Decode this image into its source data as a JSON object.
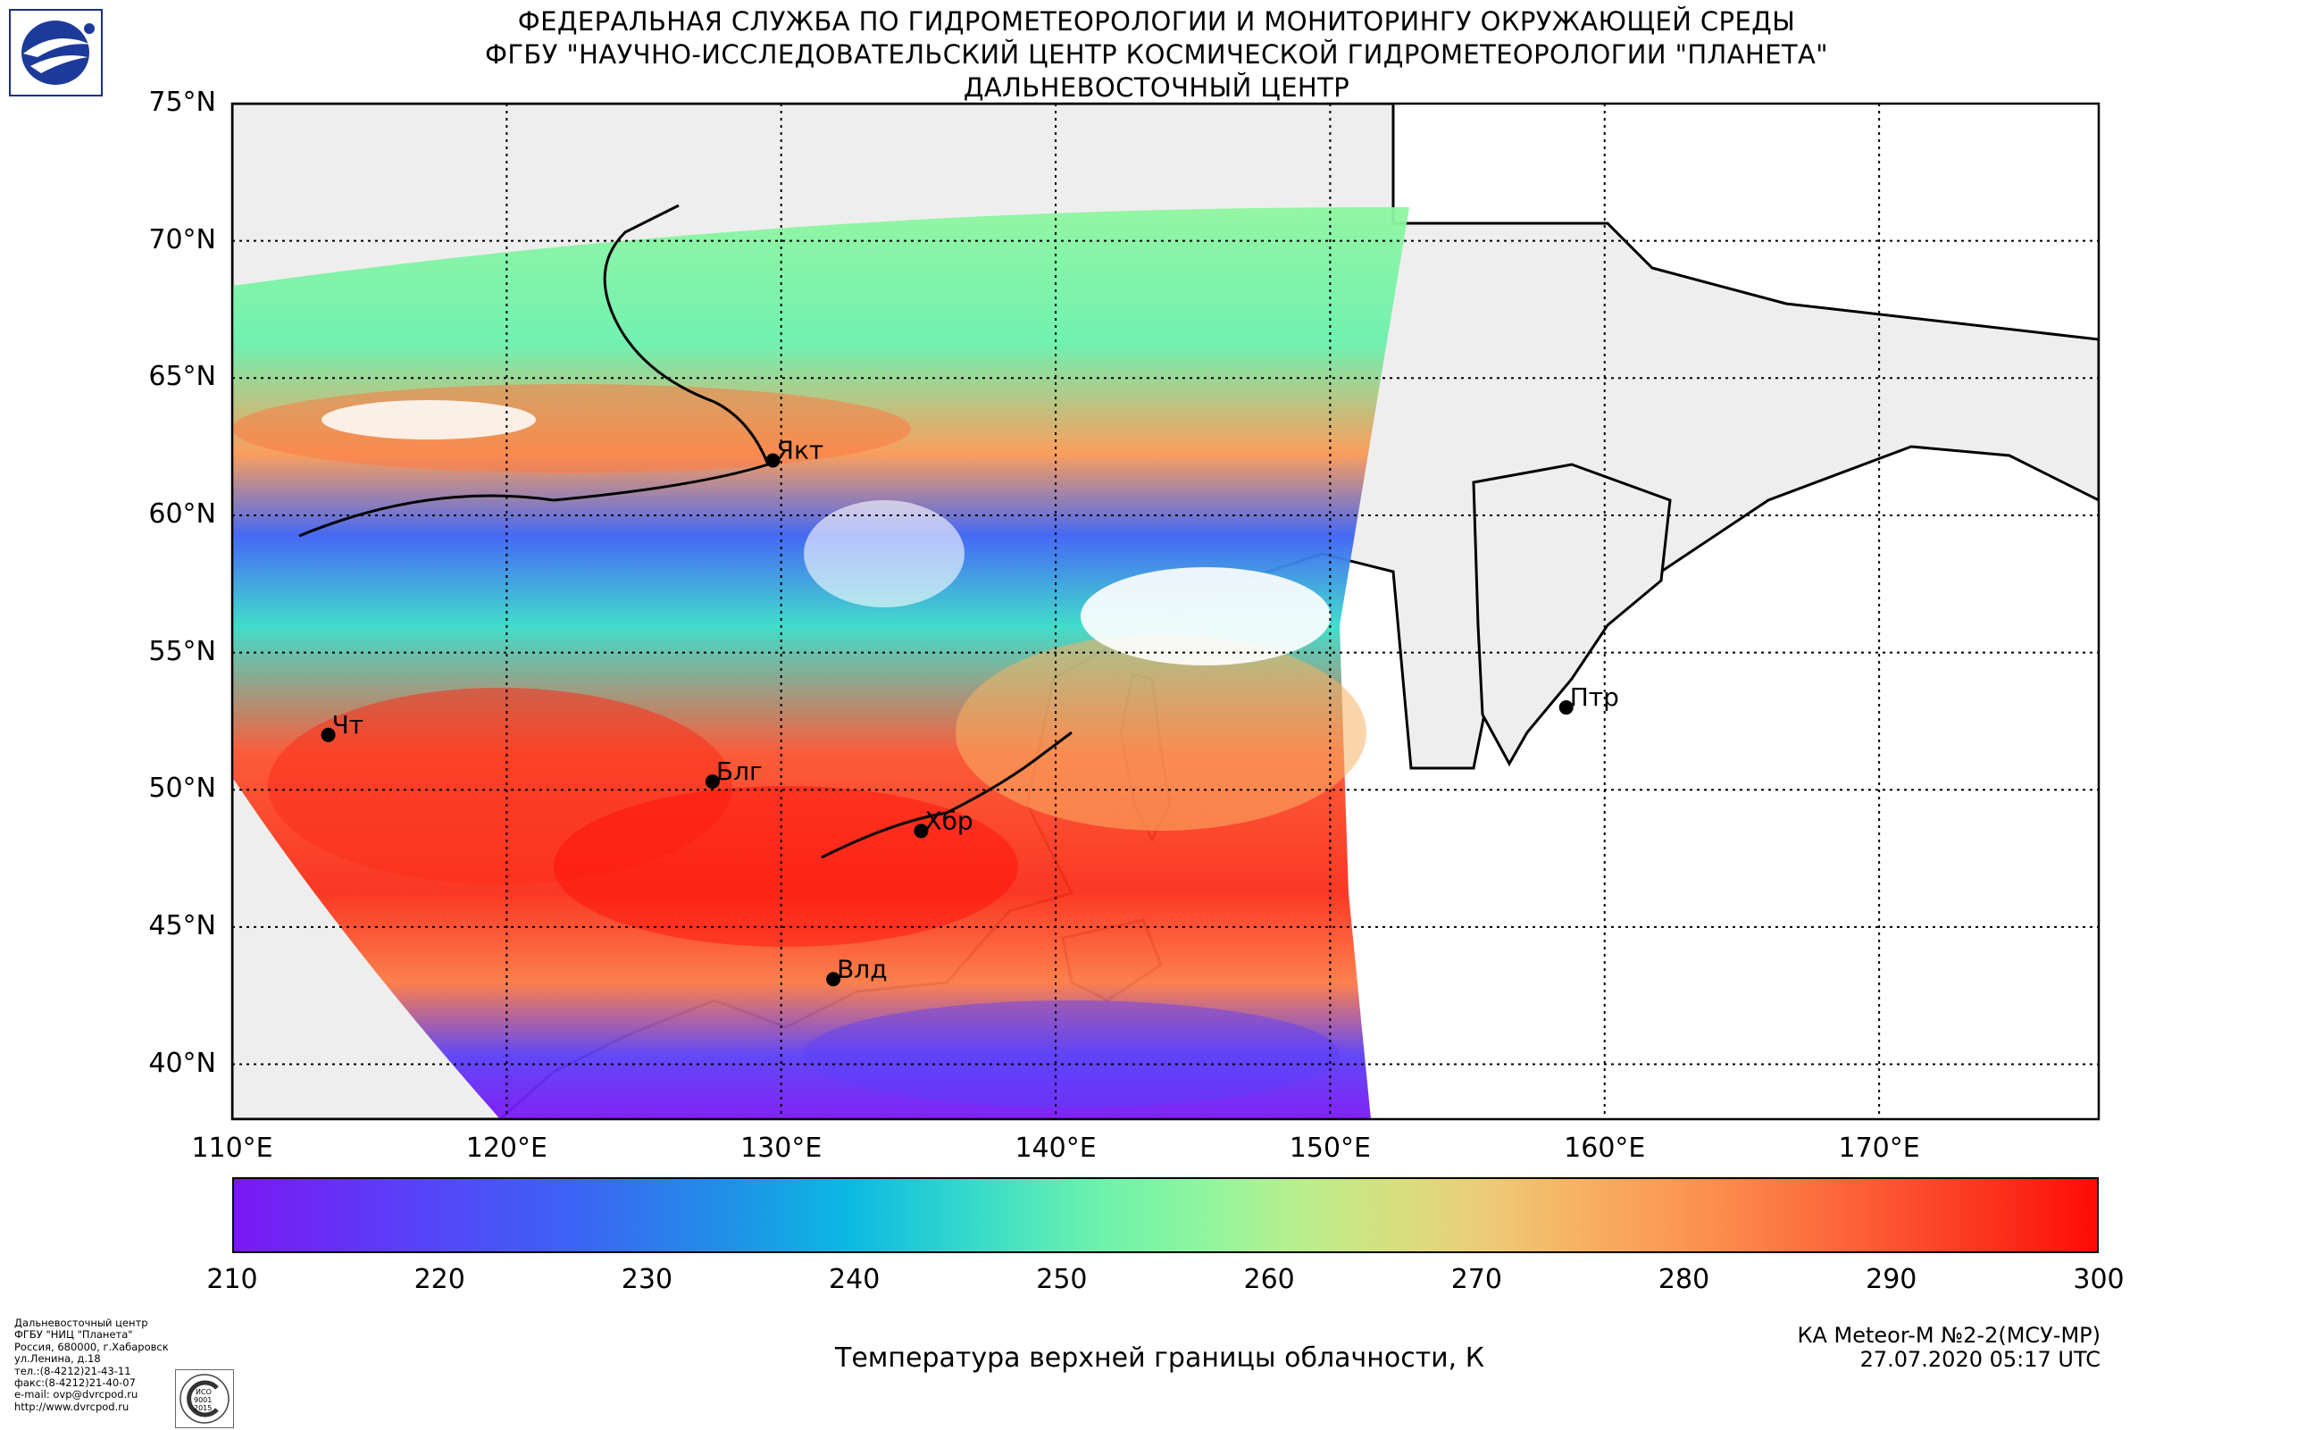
{
  "header": {
    "line1": "ФЕДЕРАЛЬНАЯ СЛУЖБА ПО ГИДРОМЕТЕОРОЛОГИИ И МОНИТОРИНГУ ОКРУЖАЮЩЕЙ СРЕДЫ",
    "line2": "ФГБУ \"НАУЧНО-ИССЛЕДОВАТЕЛЬСКИЙ ЦЕНТР КОСМИЧЕСКОЙ ГИДРОМЕТЕОРОЛОГИИ \"ПЛАНЕТА\"",
    "line3": "ДАЛЬНЕВОСТОЧНЫЙ ЦЕНТР"
  },
  "map": {
    "lat_labels": [
      "75°N",
      "70°N",
      "65°N",
      "60°N",
      "55°N",
      "50°N",
      "45°N",
      "40°N"
    ],
    "lon_labels": [
      "110°E",
      "120°E",
      "130°E",
      "140°E",
      "150°E",
      "160°E",
      "170°E"
    ],
    "cities": [
      {
        "name": "Якт",
        "lon": 129.7,
        "lat": 62.0
      },
      {
        "name": "Чт",
        "lon": 113.5,
        "lat": 52.0
      },
      {
        "name": "Блг",
        "lon": 127.5,
        "lat": 50.3
      },
      {
        "name": "Хбр",
        "lon": 135.1,
        "lat": 48.5
      },
      {
        "name": "Влд",
        "lon": 131.9,
        "lat": 43.1
      },
      {
        "name": "Птр",
        "lon": 158.6,
        "lat": 53.0
      }
    ]
  },
  "colorbar": {
    "ticks": [
      "210",
      "220",
      "230",
      "240",
      "250",
      "260",
      "270",
      "280",
      "290",
      "300"
    ],
    "min": 210,
    "max": 300,
    "caption": "Температура верхней границы облачности, К"
  },
  "satellite": {
    "name": "КА Meteor-M №2-2(МСУ-МР)",
    "datetime": "27.07.2020 05:17 UTC"
  },
  "address": [
    "Дальневосточный центр",
    "ФГБУ \"НИЦ \"Планета\"",
    "Россия, 680000, г.Хабаровск",
    "ул.Ленина, д.18",
    "тел.:(8-4212)21-43-11",
    "факс:(8-4212)21-40-07",
    "e-mail: ovp@dvrcpod.ru",
    "http://www.dvrcpod.ru"
  ],
  "seal": {
    "text_top": "ИСО",
    "text_mid": "9001",
    "text_bot": "2015"
  },
  "colors": {
    "land": "#eeeeee",
    "coast": "#000000",
    "cold": "#7a18f2",
    "warm": "#ff0b07"
  }
}
